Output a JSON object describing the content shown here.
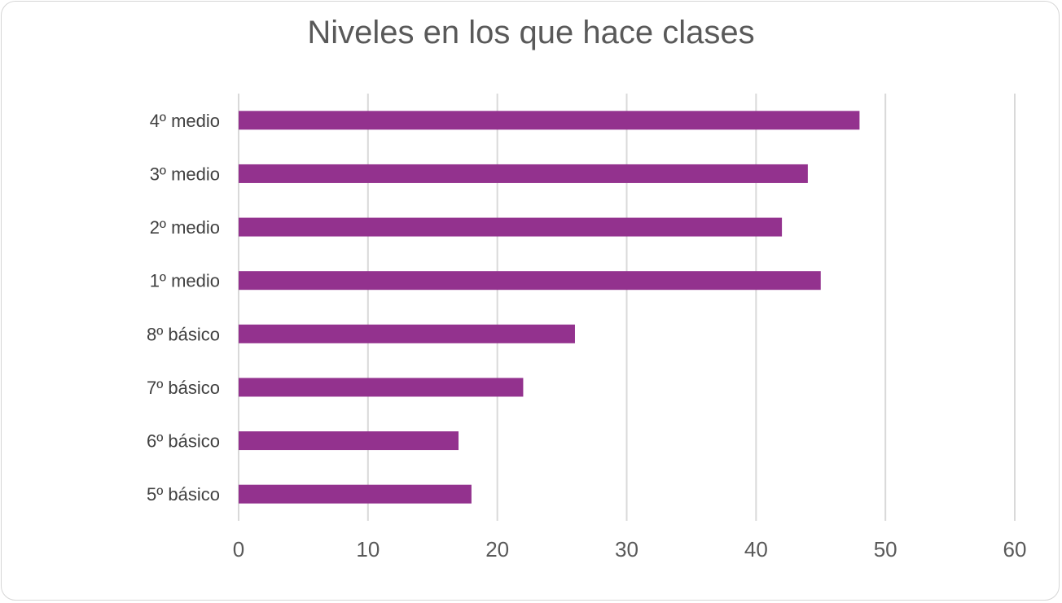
{
  "chart_data": {
    "type": "bar",
    "orientation": "horizontal",
    "title": "Niveles en los que hace clases",
    "categories": [
      "5º básico",
      "6º básico",
      "7º básico",
      "8º básico",
      "1º medio",
      "2º medio",
      "3º medio",
      "4º medio"
    ],
    "values": [
      18,
      17,
      22,
      26,
      45,
      42,
      44,
      48
    ],
    "xlim": [
      0,
      60
    ],
    "xticks": [
      0,
      10,
      20,
      30,
      40,
      50,
      60
    ],
    "xlabel": "",
    "ylabel": "",
    "grid": true,
    "legend": "none",
    "bar_color": "#93328E",
    "grid_color": "#d9d9d9"
  }
}
